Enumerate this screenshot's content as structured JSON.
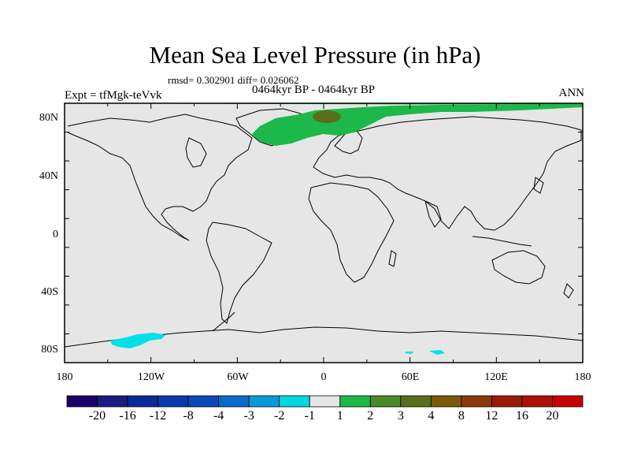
{
  "title": "Mean Sea Level Pressure (in hPa)",
  "stats": "rmsd= 0.302901 diff= 0.026062",
  "experiment": "Expt = tfMgk-teVvk",
  "period": "0464kyr BP - 0464kyr BP",
  "season": "ANN",
  "axes": {
    "lon_ticks": [
      "180",
      "120W",
      "60W",
      "0",
      "60E",
      "120E",
      "180"
    ],
    "lat_ticks": [
      "80N",
      "40N",
      "0",
      "40S",
      "80S"
    ]
  },
  "colors": {
    "background": "#e6e6e6",
    "green": "#1cb84a",
    "olive": "#5a6e1c",
    "cyan": "#00e0e8",
    "coast": "#000000"
  },
  "legend": {
    "labels": [
      "-20",
      "-16",
      "-12",
      "-8",
      "-4",
      "-3",
      "-2",
      "-1",
      "1",
      "2",
      "3",
      "4",
      "8",
      "12",
      "16",
      "20"
    ],
    "colors": [
      "#1a0066",
      "#1a1a80",
      "#0a2a9a",
      "#0a3aa8",
      "#0a4ab8",
      "#0a6cc8",
      "#0a9ad8",
      "#00d8e0",
      "#e6e6e6",
      "#1cb84a",
      "#4a8a28",
      "#5a6e1c",
      "#7a5a0a",
      "#8a3a0a",
      "#9a1a0a",
      "#b01008",
      "#c80000"
    ]
  }
}
